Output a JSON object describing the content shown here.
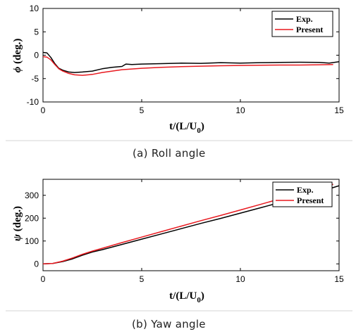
{
  "chart_data": [
    {
      "type": "line",
      "caption": "(a) Roll angle",
      "xlabel": "t/(L/U0)",
      "ylabel": "ϕ (deg.)",
      "xlim": [
        0,
        15
      ],
      "ylim": [
        -10,
        10
      ],
      "xticks": [
        "0",
        "5",
        "10",
        "15"
      ],
      "yticks": [
        "-10",
        "-5",
        "0",
        "5",
        "10"
      ],
      "legend": "top-right",
      "series": [
        {
          "name": "Exp.",
          "color": "#000000",
          "x": [
            0,
            0.2,
            0.4,
            0.6,
            0.8,
            1.0,
            1.3,
            1.6,
            2.0,
            2.5,
            3.0,
            3.5,
            4.0,
            4.2,
            4.5,
            5.0,
            6.0,
            7.0,
            8.0,
            9.0,
            10.0,
            11.0,
            12.0,
            13.0,
            14.0,
            14.5,
            15.0
          ],
          "y": [
            0.6,
            0.5,
            -0.5,
            -1.8,
            -2.8,
            -3.2,
            -3.6,
            -3.7,
            -3.6,
            -3.4,
            -2.9,
            -2.6,
            -2.4,
            -1.9,
            -2.0,
            -1.9,
            -1.8,
            -1.7,
            -1.75,
            -1.6,
            -1.7,
            -1.6,
            -1.55,
            -1.5,
            -1.55,
            -1.7,
            -1.4
          ]
        },
        {
          "name": "Present",
          "color": "#e8191f",
          "x": [
            0,
            0.2,
            0.4,
            0.6,
            0.8,
            1.0,
            1.3,
            1.6,
            2.0,
            2.5,
            3.0,
            3.5,
            4.0,
            5.0,
            6.0,
            7.0,
            8.0,
            9.0,
            10.0,
            11.0,
            12.0,
            13.0,
            14.0,
            14.7
          ],
          "y": [
            -0.3,
            -0.4,
            -1.0,
            -2.0,
            -2.9,
            -3.4,
            -3.9,
            -4.2,
            -4.3,
            -4.1,
            -3.7,
            -3.4,
            -3.1,
            -2.8,
            -2.6,
            -2.45,
            -2.35,
            -2.25,
            -2.2,
            -2.15,
            -2.1,
            -2.1,
            -2.05,
            -2.0
          ]
        }
      ]
    },
    {
      "type": "line",
      "caption": "(b) Yaw angle",
      "xlabel": "t/(L/U0)",
      "ylabel": "ψ (deg.)",
      "xlim": [
        0,
        15
      ],
      "ylim": [
        -30,
        370
      ],
      "xticks": [
        "0",
        "5",
        "10",
        "15"
      ],
      "yticks": [
        "0",
        "100",
        "200",
        "300"
      ],
      "legend": "top-right",
      "series": [
        {
          "name": "Exp.",
          "color": "#000000",
          "x": [
            0,
            0.5,
            1.0,
            1.5,
            2.0,
            2.5,
            3,
            4,
            5,
            6,
            7,
            8,
            9,
            10,
            11,
            12,
            13,
            14,
            15
          ],
          "y": [
            0,
            2,
            10,
            22,
            38,
            52,
            62,
            85,
            108,
            131,
            154,
            177,
            199,
            222,
            245,
            268,
            291,
            315,
            342
          ]
        },
        {
          "name": "Present",
          "color": "#e8191f",
          "x": [
            0,
            0.5,
            1.0,
            1.5,
            2.0,
            2.5,
            3,
            4,
            5,
            6,
            7,
            8,
            9,
            10,
            11,
            12,
            13,
            14,
            14.7
          ],
          "y": [
            0,
            2,
            12,
            26,
            42,
            56,
            68,
            93,
            117,
            141,
            165,
            189,
            212,
            236,
            260,
            284,
            307,
            330,
            348
          ]
        }
      ]
    }
  ]
}
